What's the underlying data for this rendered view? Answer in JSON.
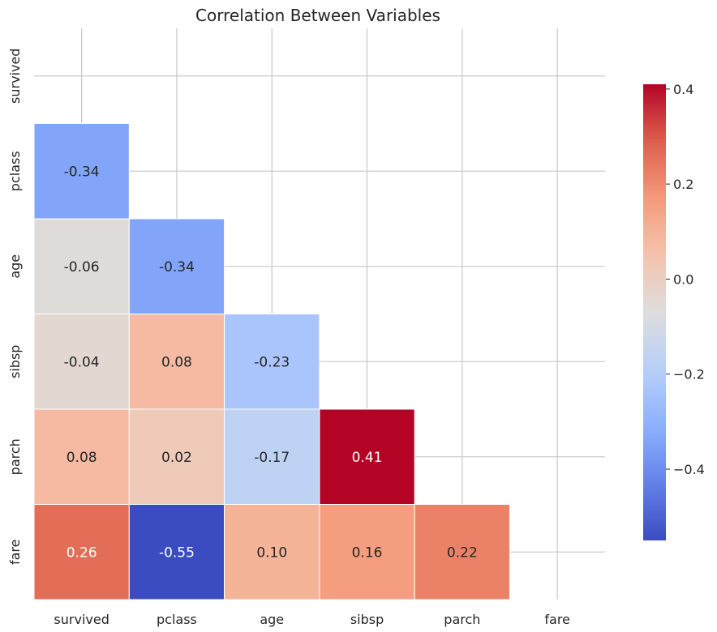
{
  "chart_data": {
    "type": "heatmap",
    "title": "Correlation Between Variables",
    "variables": [
      "survived",
      "pclass",
      "age",
      "sibsp",
      "parch",
      "fare"
    ],
    "mask": "upper-triangle-and-diagonal",
    "cells": [
      {
        "row": "pclass",
        "col": "survived",
        "value": -0.34,
        "label": "-0.34"
      },
      {
        "row": "age",
        "col": "survived",
        "value": -0.06,
        "label": "-0.06"
      },
      {
        "row": "age",
        "col": "pclass",
        "value": -0.34,
        "label": "-0.34"
      },
      {
        "row": "sibsp",
        "col": "survived",
        "value": -0.04,
        "label": "-0.04"
      },
      {
        "row": "sibsp",
        "col": "pclass",
        "value": 0.08,
        "label": "0.08"
      },
      {
        "row": "sibsp",
        "col": "age",
        "value": -0.23,
        "label": "-0.23"
      },
      {
        "row": "parch",
        "col": "survived",
        "value": 0.08,
        "label": "0.08"
      },
      {
        "row": "parch",
        "col": "pclass",
        "value": 0.02,
        "label": "0.02"
      },
      {
        "row": "parch",
        "col": "age",
        "value": -0.17,
        "label": "-0.17"
      },
      {
        "row": "parch",
        "col": "sibsp",
        "value": 0.41,
        "label": "0.41"
      },
      {
        "row": "fare",
        "col": "survived",
        "value": 0.26,
        "label": "0.26"
      },
      {
        "row": "fare",
        "col": "pclass",
        "value": -0.55,
        "label": "-0.55"
      },
      {
        "row": "fare",
        "col": "age",
        "value": 0.1,
        "label": "0.10"
      },
      {
        "row": "fare",
        "col": "sibsp",
        "value": 0.16,
        "label": "0.16"
      },
      {
        "row": "fare",
        "col": "parch",
        "value": 0.22,
        "label": "0.22"
      }
    ],
    "colormap": "coolwarm",
    "vmin": -0.55,
    "vmax": 0.41,
    "colorbar": {
      "ticks": [
        0.4,
        0.2,
        0.0,
        -0.2,
        -0.4
      ],
      "tick_labels": [
        "0.4",
        "0.2",
        "0.0",
        "−0.2",
        "−0.4"
      ]
    },
    "grid": true
  }
}
